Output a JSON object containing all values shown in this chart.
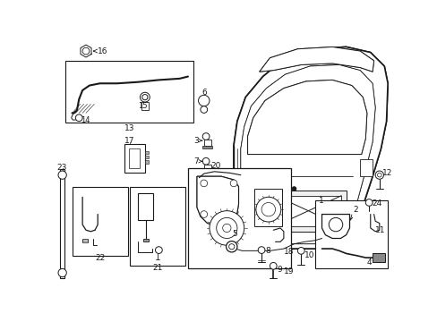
{
  "bg": "#ffffff",
  "lc": "#1a1a1a",
  "lw": 0.7,
  "fig_w": 4.89,
  "fig_h": 3.6,
  "dpi": 100
}
